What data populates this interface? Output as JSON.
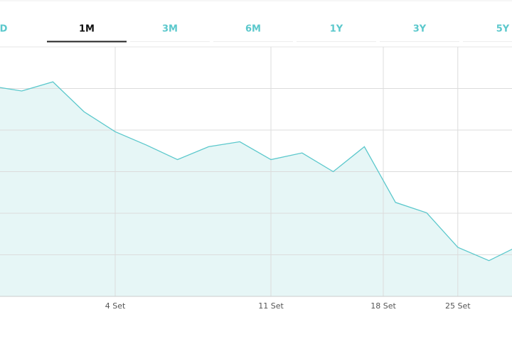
{
  "tabs": [
    "D",
    "1M",
    "3M",
    "6M",
    "1Y",
    "3Y",
    "5Y"
  ],
  "selected_tab": 1,
  "chart_data": {
    "type": "area",
    "categories": [
      null,
      null,
      null,
      null,
      "4 Set",
      null,
      null,
      null,
      null,
      "11 Set",
      null,
      null,
      null,
      "18 Set",
      null,
      "25 Set",
      null,
      null
    ],
    "values": [
      5.06,
      4.94,
      5.16,
      4.44,
      3.96,
      3.64,
      3.29,
      3.6,
      3.72,
      3.29,
      3.45,
      3.0,
      3.6,
      2.26,
      2.01,
      1.18,
      0.86,
      1.23
    ],
    "color": "#5bc8cc",
    "fill": "#e6f6f6",
    "ylim": [
      0,
      6
    ],
    "yticks": [
      1,
      2,
      3,
      4,
      5
    ],
    "grid": true
  }
}
